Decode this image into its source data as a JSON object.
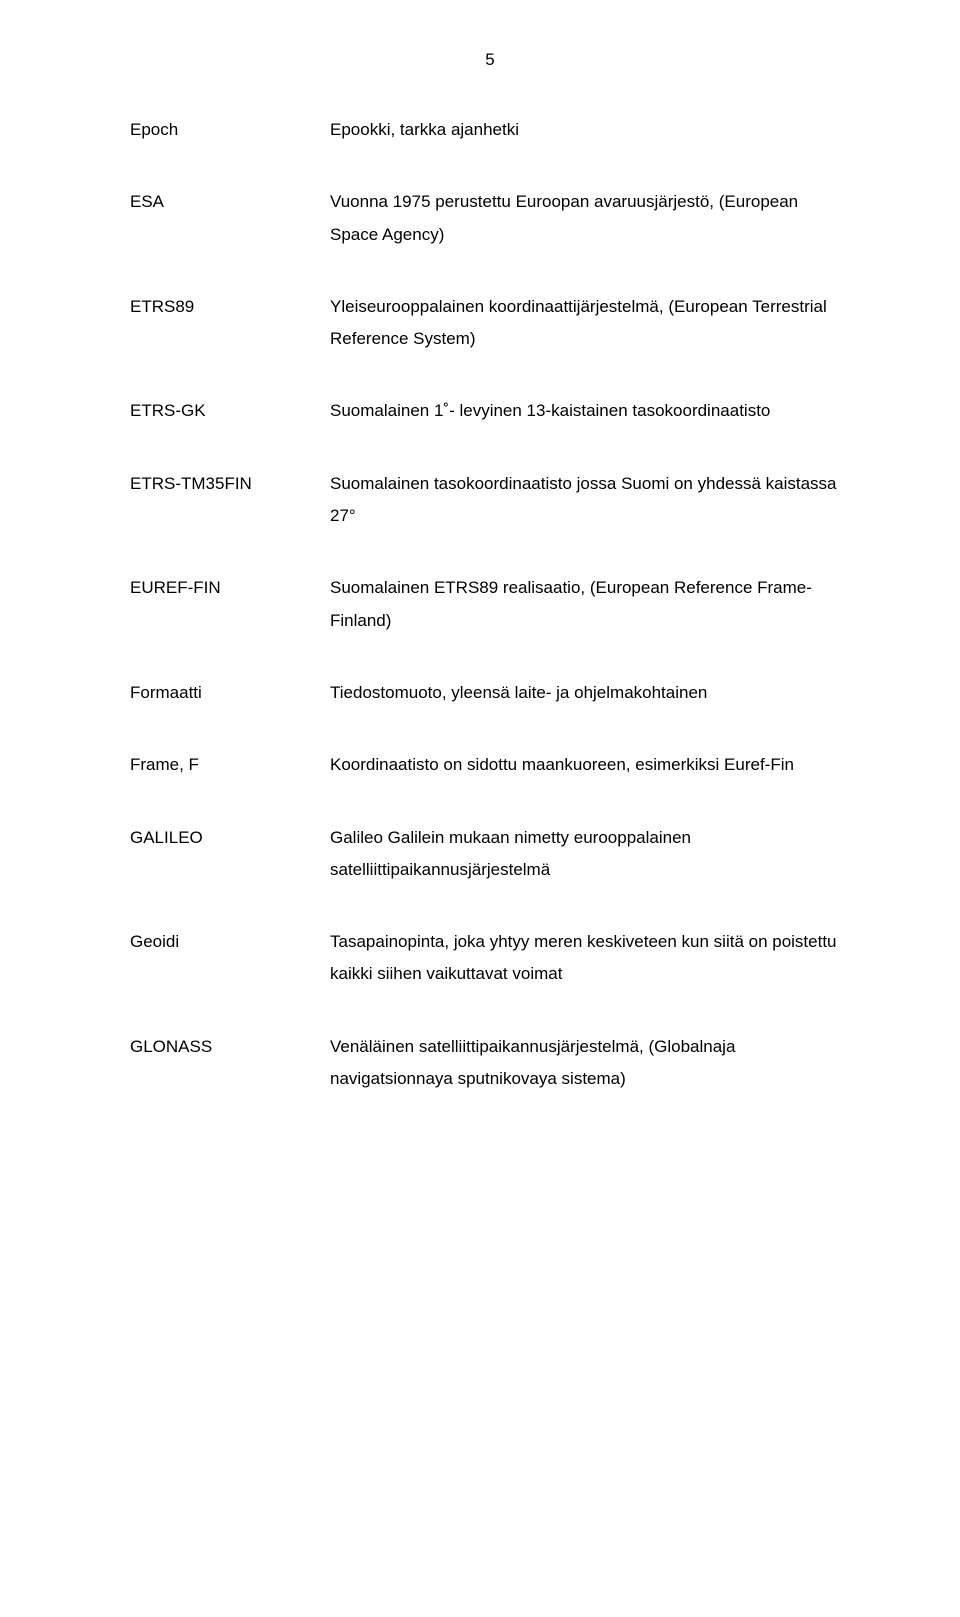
{
  "page_number": "5",
  "font_family": "Arial, Helvetica, sans-serif",
  "font_size_pt": 12,
  "text_color": "#000000",
  "background_color": "#ffffff",
  "entries": [
    {
      "term": "Epoch",
      "definition": "Epookki, tarkka ajanhetki"
    },
    {
      "term": "ESA",
      "definition": "Vuonna 1975 perustettu Euroopan avaruusjärjestö, (European Space Agency)"
    },
    {
      "term": "ETRS89",
      "definition": "Yleiseurooppalainen koordinaattijärjestelmä, (European Terrestrial Reference System)"
    },
    {
      "term": "ETRS-GK",
      "definition": "Suomalainen 1˚- levyinen 13-kaistainen tasokoordinaatisto"
    },
    {
      "term": "ETRS-TM35FIN",
      "definition": "Suomalainen tasokoordinaatisto jossa Suomi on yhdessä kaistassa 27°"
    },
    {
      "term": "EUREF-FIN",
      "definition": "Suomalainen ETRS89 realisaatio, (European Reference Frame-Finland)"
    },
    {
      "term": "Formaatti",
      "definition": "Tiedostomuoto, yleensä laite- ja ohjelmakohtainen"
    },
    {
      "term": "Frame, F",
      "definition": "Koordinaatisto on sidottu maankuoreen, esimerkiksi Euref-Fin"
    },
    {
      "term": "GALILEO",
      "definition": "Galileo Galilein mukaan nimetty eurooppalainen satelliittipaikannusjärjestelmä"
    },
    {
      "term": "Geoidi",
      "definition": "Tasapainopinta, joka yhtyy meren keskiveteen kun siitä on poistettu kaikki siihen vaikuttavat voimat"
    },
    {
      "term": "GLONASS",
      "definition": "Venäläinen satelliittipaikannusjärjestelmä, (Globalnaja navigatsionnaya sputnikovaya sistema)"
    }
  ]
}
